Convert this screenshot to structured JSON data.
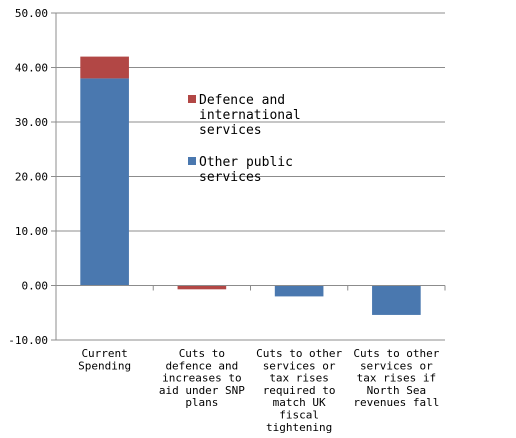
{
  "chart_data": {
    "type": "bar",
    "stacked": true,
    "categories": [
      [
        "Current",
        "Spending"
      ],
      [
        "Cuts to",
        "defence and",
        "increases to",
        "aid under SNP",
        "plans"
      ],
      [
        "Cuts to other",
        "services or",
        "tax rises",
        "required to",
        "match UK",
        "fiscal",
        "tightening"
      ],
      [
        "Cuts to other",
        "services or",
        "tax rises if",
        "North Sea",
        "revenues fall"
      ]
    ],
    "series": [
      {
        "name": "Other public services",
        "legend_lines": [
          "Other public",
          "services"
        ],
        "color": "#4A78AF",
        "values": [
          38.0,
          0.0,
          -2.0,
          -5.4
        ]
      },
      {
        "name": "Defence and international services",
        "legend_lines": [
          "Defence and",
          "international",
          "services"
        ],
        "color": "#B24745",
        "values": [
          4.0,
          -0.7,
          0.0,
          0.0
        ]
      }
    ],
    "ylim": [
      -10,
      50
    ],
    "yticks": [
      "-10.00",
      "0.00",
      "10.00",
      "20.00",
      "30.00",
      "40.00",
      "50.00"
    ],
    "ytick_values": [
      -10,
      0,
      10,
      20,
      30,
      40,
      50
    ],
    "grid": true,
    "legend_position": "inside-top-center",
    "title": "",
    "xlabel": "",
    "ylabel": ""
  }
}
